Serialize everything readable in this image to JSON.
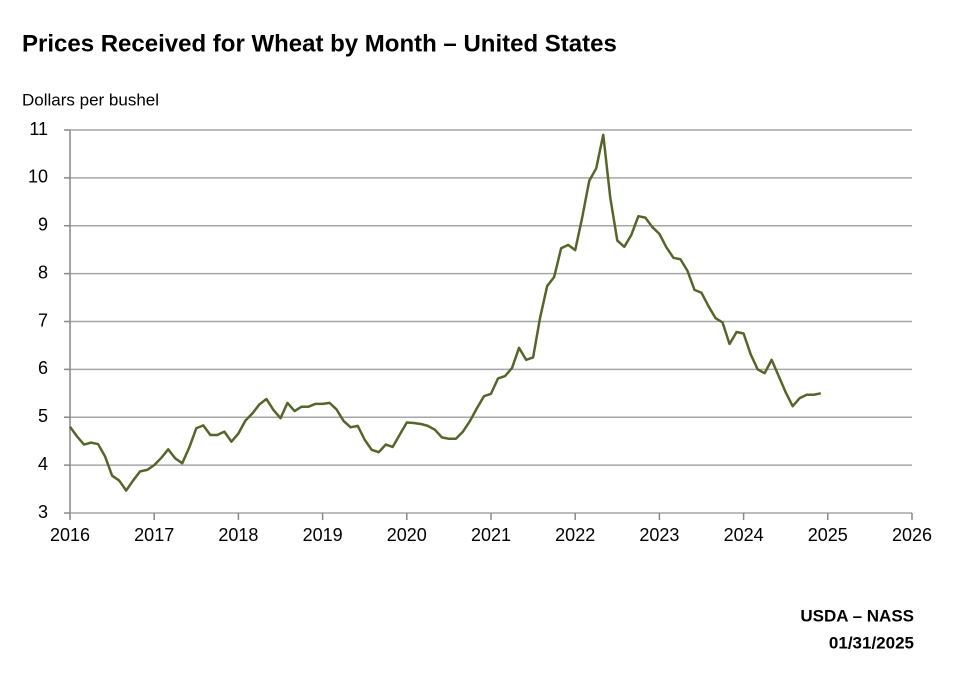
{
  "chart_data": {
    "type": "line",
    "title": "Prices Received for Wheat by Month – United States",
    "y_label": "Dollars per bushel",
    "source": "USDA – NASS",
    "date": "01/31/2025",
    "color": "#56662a",
    "grid": true,
    "x": [
      2016.0,
      2016.083,
      2016.167,
      2016.25,
      2016.333,
      2016.417,
      2016.5,
      2016.583,
      2016.667,
      2016.75,
      2016.833,
      2016.917,
      2017.0,
      2017.083,
      2017.167,
      2017.25,
      2017.333,
      2017.417,
      2017.5,
      2017.583,
      2017.667,
      2017.75,
      2017.833,
      2017.917,
      2018.0,
      2018.083,
      2018.167,
      2018.25,
      2018.333,
      2018.417,
      2018.5,
      2018.583,
      2018.667,
      2018.75,
      2018.833,
      2018.917,
      2019.0,
      2019.083,
      2019.167,
      2019.25,
      2019.333,
      2019.417,
      2019.5,
      2019.583,
      2019.667,
      2019.75,
      2019.833,
      2019.917,
      2020.0,
      2020.083,
      2020.167,
      2020.25,
      2020.333,
      2020.417,
      2020.5,
      2020.583,
      2020.667,
      2020.75,
      2020.833,
      2020.917,
      2021.0,
      2021.083,
      2021.167,
      2021.25,
      2021.333,
      2021.417,
      2021.5,
      2021.583,
      2021.667,
      2021.75,
      2021.833,
      2021.917,
      2022.0,
      2022.083,
      2022.167,
      2022.25,
      2022.333,
      2022.417,
      2022.5,
      2022.583,
      2022.667,
      2022.75,
      2022.833,
      2022.917,
      2023.0,
      2023.083,
      2023.167,
      2023.25,
      2023.333,
      2023.417,
      2023.5,
      2023.583,
      2023.667,
      2023.75,
      2023.833,
      2023.917,
      2024.0,
      2024.083,
      2024.167,
      2024.25,
      2024.333,
      2024.417,
      2024.5,
      2024.583,
      2024.667,
      2024.75,
      2024.833,
      2024.917
    ],
    "values": [
      4.8,
      4.6,
      4.43,
      4.47,
      4.44,
      4.18,
      3.78,
      3.68,
      3.47,
      3.68,
      3.87,
      3.9,
      4.0,
      4.15,
      4.33,
      4.14,
      4.04,
      4.37,
      4.77,
      4.83,
      4.63,
      4.63,
      4.7,
      4.49,
      4.66,
      4.93,
      5.08,
      5.27,
      5.38,
      5.15,
      4.98,
      5.3,
      5.13,
      5.22,
      5.22,
      5.28,
      5.28,
      5.3,
      5.16,
      4.92,
      4.79,
      4.82,
      4.53,
      4.32,
      4.27,
      4.43,
      4.38,
      4.64,
      4.89,
      4.88,
      4.86,
      4.82,
      4.74,
      4.58,
      4.55,
      4.55,
      4.7,
      4.92,
      5.19,
      5.44,
      5.49,
      5.81,
      5.86,
      6.03,
      6.45,
      6.2,
      6.25,
      7.08,
      7.74,
      7.93,
      8.53,
      8.6,
      8.49,
      9.17,
      9.94,
      10.2,
      10.9,
      9.58,
      8.69,
      8.56,
      8.81,
      9.2,
      9.17,
      8.97,
      8.83,
      8.55,
      8.33,
      8.3,
      8.06,
      7.66,
      7.6,
      7.32,
      7.07,
      6.98,
      6.53,
      6.78,
      6.75,
      6.32,
      6.0,
      5.92,
      6.2,
      5.86,
      5.52,
      5.23,
      5.4,
      5.47,
      5.47,
      5.5
    ],
    "xlim": [
      2016,
      2026
    ],
    "xticks": [
      2016,
      2017,
      2018,
      2019,
      2020,
      2021,
      2022,
      2023,
      2024,
      2025,
      2026
    ],
    "ylim": [
      3,
      11
    ],
    "yticks": [
      3,
      4,
      5,
      6,
      7,
      8,
      9,
      10,
      11
    ]
  }
}
